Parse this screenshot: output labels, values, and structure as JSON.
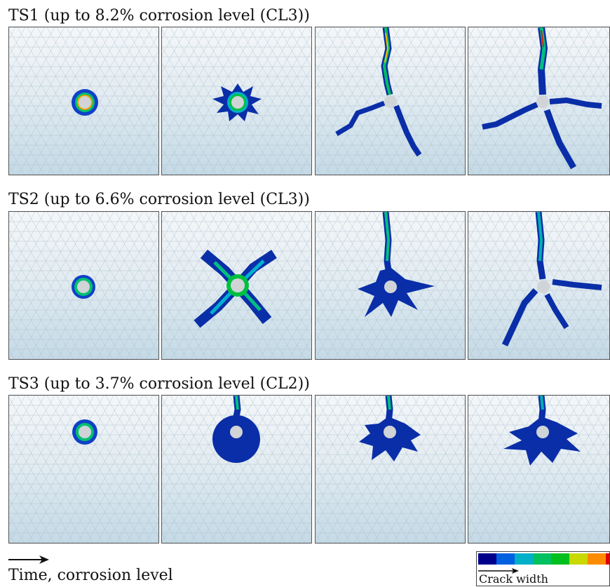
{
  "rows": [
    {
      "title": "TS1 (up to 8.2% corrosion level (CL3))"
    },
    {
      "title": "TS2 (up to 6.6% corrosion level (CL3))"
    },
    {
      "title": "TS3 (up to 3.7% corrosion level (CL2))"
    }
  ],
  "time_axis": {
    "label": "Time, corrosion level"
  },
  "legend": {
    "label": "Crack width",
    "colors": [
      "#00008b",
      "#0060e0",
      "#00b0c8",
      "#00c060",
      "#00c020",
      "#c8d800",
      "#ff8c00",
      "#e00000"
    ]
  },
  "colors": {
    "mesh_light": "#f4f7f9",
    "mesh_dark": "#c4dae6",
    "crack_blue": "#0a2ea8",
    "hole": "#d0d4d6"
  }
}
